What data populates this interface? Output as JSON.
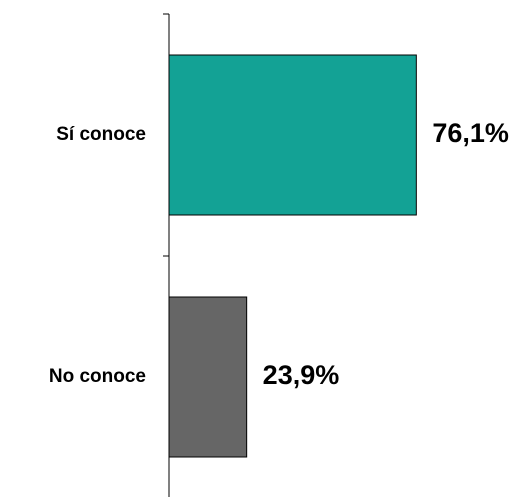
{
  "chart_data": {
    "type": "bar",
    "orientation": "horizontal",
    "categories": [
      "Sí conoce",
      "No conoce"
    ],
    "values": [
      76.1,
      23.9
    ],
    "value_labels": [
      "76,1%",
      "23,9%"
    ],
    "colors": [
      "#13a295",
      "#666666"
    ],
    "xlim": [
      0,
      100
    ],
    "title": "",
    "xlabel": "",
    "ylabel": "",
    "grid": false,
    "legend": "none"
  }
}
